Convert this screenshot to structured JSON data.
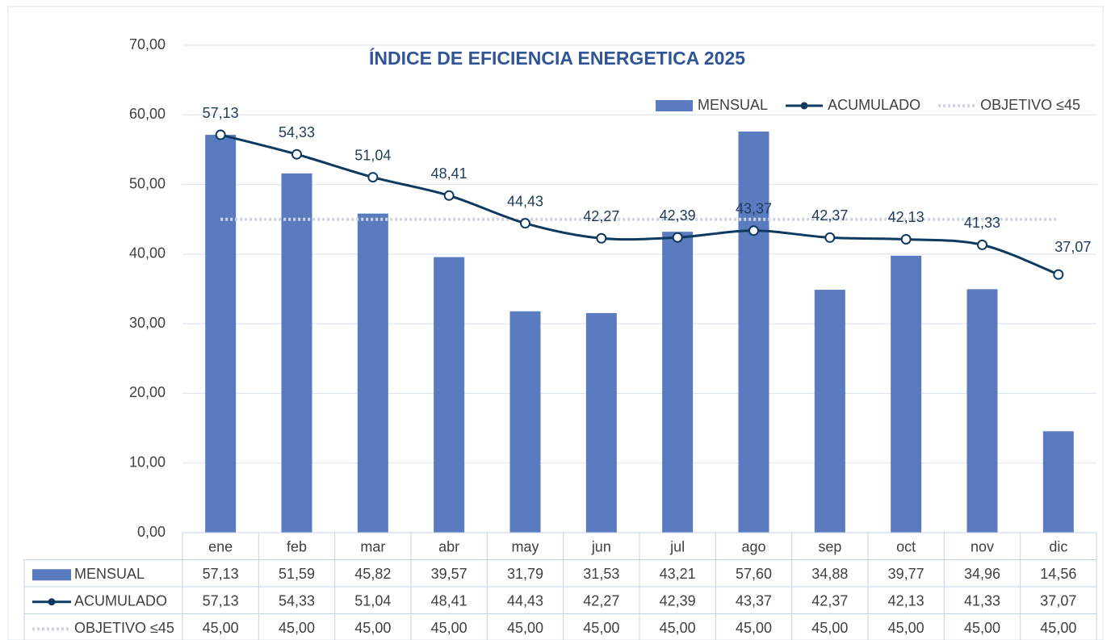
{
  "chart_data": {
    "type": "bar",
    "title": "ÍNDICE DE EFICIENCIA ENERGETICA 2025",
    "categories": [
      "ene",
      "feb",
      "mar",
      "abr",
      "may",
      "jun",
      "jul",
      "ago",
      "sep",
      "oct",
      "nov",
      "dic"
    ],
    "series": [
      {
        "name": "MENSUAL",
        "type": "bar",
        "color": "#5a7bc0",
        "values": [
          57.13,
          51.59,
          45.82,
          39.57,
          31.79,
          31.53,
          43.21,
          57.6,
          34.88,
          39.77,
          34.96,
          14.56
        ],
        "value_labels": [
          "57,13",
          "51,59",
          "45,82",
          "39,57",
          "31,79",
          "31,53",
          "43,21",
          "57,60",
          "34,88",
          "39,77",
          "34,96",
          "14,56"
        ]
      },
      {
        "name": "ACUMULADO",
        "type": "line",
        "color": "#0f3a5f",
        "smooth": true,
        "markers": true,
        "data_labels": true,
        "values": [
          57.13,
          54.33,
          51.04,
          48.41,
          44.43,
          42.27,
          42.39,
          43.37,
          42.37,
          42.13,
          41.33,
          37.07
        ],
        "value_labels": [
          "57,13",
          "54,33",
          "51,04",
          "48,41",
          "44,43",
          "42,27",
          "42,39",
          "43,37",
          "42,37",
          "42,13",
          "41,33",
          "37,07"
        ]
      },
      {
        "name": "OBJETIVO ≤45",
        "type": "line",
        "color": "#cfd6e0",
        "dash": "dotted",
        "values": [
          45,
          45,
          45,
          45,
          45,
          45,
          45,
          45,
          45,
          45,
          45,
          45
        ],
        "value_labels": [
          "45,00",
          "45,00",
          "45,00",
          "45,00",
          "45,00",
          "45,00",
          "45,00",
          "45,00",
          "45,00",
          "45,00",
          "45,00",
          "45,00"
        ]
      }
    ],
    "ylim": [
      0,
      70
    ],
    "yticks": [
      {
        "value": 0,
        "label": "0,00"
      },
      {
        "value": 10,
        "label": "10,00"
      },
      {
        "value": 20,
        "label": "20,00"
      },
      {
        "value": 30,
        "label": "30,00"
      },
      {
        "value": 40,
        "label": "40,00"
      },
      {
        "value": 50,
        "label": "50,00"
      },
      {
        "value": 60,
        "label": "60,00"
      },
      {
        "value": 70,
        "label": "70,00"
      }
    ],
    "grid": true,
    "legend": "top-right",
    "data_table": true
  }
}
